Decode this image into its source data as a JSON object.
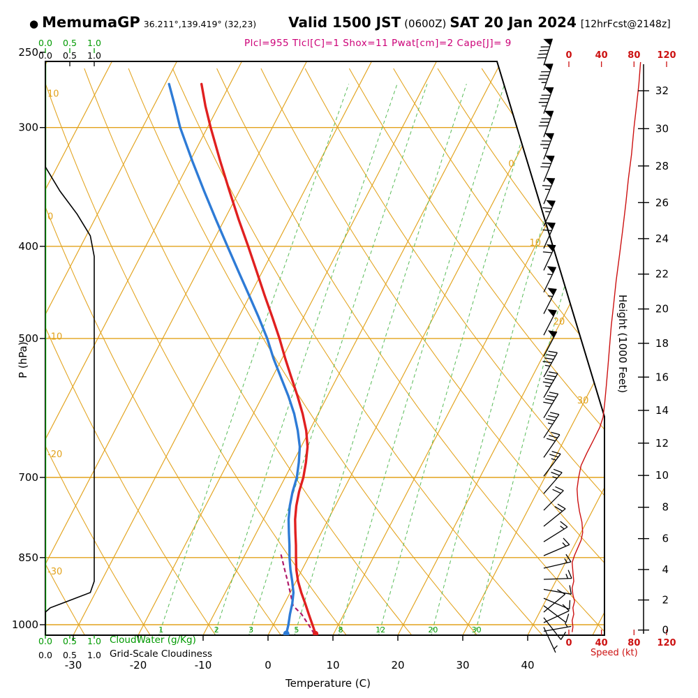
{
  "header": {
    "bullet": "●",
    "station": "MemumaGP",
    "coords": "36.211°,139.419° (32,23)",
    "valid": "Valid 1500 JST",
    "valid_z": "(0600Z)",
    "date": "SAT 20 Jan 2024",
    "fcst_tag": "[12hrFcst@2148z]",
    "params_line": "Plcl=955 Tlcl[C]=1 Shox=11 Pwat[cm]=2 Cape[J]= 9"
  },
  "axes": {
    "pressure": {
      "label": "P (hPa)",
      "ticks": [
        250,
        300,
        400,
        500,
        700,
        850,
        1000
      ]
    },
    "temperature": {
      "label": "Temperature (C)",
      "ticks": [
        -30,
        -20,
        -10,
        0,
        10,
        20,
        30,
        40
      ]
    },
    "height": {
      "label": "Height (1000 Feet)",
      "ticks": [
        0,
        2,
        4,
        6,
        8,
        10,
        12,
        14,
        16,
        18,
        20,
        22,
        24,
        26,
        28,
        30,
        32
      ]
    },
    "speed": {
      "label": "Speed (kt)",
      "ticks": [
        0,
        40,
        80,
        120
      ]
    },
    "cloudwater": {
      "label": "CloudWater (g/Kg)",
      "ticks": [
        "0.0",
        "0.5",
        "1.0"
      ]
    },
    "cloudiness": {
      "label": "Grid-Scale Cloudiness",
      "ticks": [
        "0.0",
        "0.5",
        "1.0"
      ]
    },
    "dry_adiabat_labels": [
      10,
      0,
      -10,
      -20,
      -30
    ],
    "isotherm_labels": [
      0,
      10,
      20,
      30
    ],
    "mixing_ratio_labels": [
      1,
      2,
      3,
      5,
      8,
      12,
      20,
      30
    ]
  },
  "chart_data": {
    "type": "skewt-logp sounding",
    "pressure_range_hPa": [
      256,
      1030
    ],
    "temperature_profile": [
      [
        1022,
        7.2
      ],
      [
        1000,
        6.0
      ],
      [
        975,
        4.6
      ],
      [
        950,
        3.2
      ],
      [
        925,
        1.7
      ],
      [
        900,
        0.3
      ],
      [
        875,
        -0.9
      ],
      [
        850,
        -1.9
      ],
      [
        825,
        -2.9
      ],
      [
        800,
        -4.0
      ],
      [
        775,
        -5.1
      ],
      [
        750,
        -6.0
      ],
      [
        725,
        -6.7
      ],
      [
        700,
        -7.2
      ],
      [
        675,
        -8.0
      ],
      [
        650,
        -9.0
      ],
      [
        625,
        -10.5
      ],
      [
        600,
        -12.4
      ],
      [
        575,
        -14.6
      ],
      [
        550,
        -17.0
      ],
      [
        525,
        -19.5
      ],
      [
        500,
        -22.0
      ],
      [
        475,
        -24.8
      ],
      [
        450,
        -27.8
      ],
      [
        425,
        -30.9
      ],
      [
        400,
        -34.2
      ],
      [
        375,
        -37.8
      ],
      [
        350,
        -41.5
      ],
      [
        325,
        -45.4
      ],
      [
        300,
        -49.5
      ],
      [
        285,
        -52.0
      ],
      [
        270,
        -54.4
      ]
    ],
    "dewpoint_profile": [
      [
        1022,
        2.7
      ],
      [
        1000,
        2.3
      ],
      [
        975,
        1.7
      ],
      [
        950,
        1.2
      ],
      [
        925,
        0.5
      ],
      [
        900,
        -0.6
      ],
      [
        875,
        -1.8
      ],
      [
        850,
        -2.9
      ],
      [
        825,
        -3.9
      ],
      [
        800,
        -5.0
      ],
      [
        775,
        -6.1
      ],
      [
        750,
        -7.0
      ],
      [
        725,
        -7.7
      ],
      [
        700,
        -8.2
      ],
      [
        675,
        -9.1
      ],
      [
        650,
        -10.2
      ],
      [
        625,
        -11.8
      ],
      [
        600,
        -13.7
      ],
      [
        575,
        -16.0
      ],
      [
        550,
        -18.6
      ],
      [
        525,
        -21.3
      ],
      [
        500,
        -23.9
      ],
      [
        475,
        -26.9
      ],
      [
        450,
        -30.2
      ],
      [
        425,
        -33.7
      ],
      [
        400,
        -37.4
      ],
      [
        375,
        -41.3
      ],
      [
        350,
        -45.4
      ],
      [
        325,
        -49.7
      ],
      [
        300,
        -54.2
      ],
      [
        285,
        -56.7
      ],
      [
        270,
        -59.4
      ]
    ],
    "parcel_path": [
      [
        1022,
        7.0
      ],
      [
        1000,
        5.4
      ],
      [
        975,
        3.5
      ],
      [
        955,
        1.5
      ],
      [
        925,
        0.0
      ],
      [
        900,
        -1.3
      ],
      [
        875,
        -2.7
      ],
      [
        850,
        -4.1
      ],
      [
        838,
        -4.8
      ]
    ],
    "cloudiness_profile": [
      [
        256,
        0
      ],
      [
        330,
        0
      ],
      [
        350,
        0.3
      ],
      [
        370,
        0.65
      ],
      [
        390,
        0.92
      ],
      [
        410,
        1.0
      ],
      [
        900,
        1.0
      ],
      [
        925,
        0.92
      ],
      [
        945,
        0.45
      ],
      [
        960,
        0.1
      ],
      [
        970,
        0
      ],
      [
        1025,
        0
      ]
    ],
    "cloudwater_profile": [
      [
        256,
        0
      ],
      [
        500,
        0
      ],
      [
        750,
        0
      ],
      [
        1025,
        0
      ]
    ],
    "wind_speed_profile_kt": [
      [
        256,
        88
      ],
      [
        270,
        86
      ],
      [
        285,
        83
      ],
      [
        300,
        80
      ],
      [
        320,
        77
      ],
      [
        340,
        73
      ],
      [
        360,
        70
      ],
      [
        385,
        66
      ],
      [
        410,
        62
      ],
      [
        435,
        58
      ],
      [
        460,
        55
      ],
      [
        485,
        52
      ],
      [
        510,
        50
      ],
      [
        535,
        48
      ],
      [
        560,
        46
      ],
      [
        585,
        44
      ],
      [
        605,
        42
      ],
      [
        620,
        38
      ],
      [
        640,
        30
      ],
      [
        660,
        22
      ],
      [
        680,
        15
      ],
      [
        700,
        12
      ],
      [
        720,
        10
      ],
      [
        740,
        11
      ],
      [
        760,
        13
      ],
      [
        780,
        16
      ],
      [
        800,
        17
      ],
      [
        815,
        15
      ],
      [
        830,
        11
      ],
      [
        845,
        7
      ],
      [
        860,
        4
      ],
      [
        880,
        5
      ],
      [
        900,
        6
      ],
      [
        915,
        4
      ],
      [
        930,
        5
      ],
      [
        945,
        7
      ],
      [
        960,
        5
      ],
      [
        975,
        6
      ],
      [
        990,
        4
      ],
      [
        1005,
        5
      ],
      [
        1018,
        4
      ]
    ],
    "wind_barbs": [
      {
        "p": 258,
        "kt": 90,
        "angle": 18
      },
      {
        "p": 274,
        "kt": 85,
        "angle": 19
      },
      {
        "p": 290,
        "kt": 85,
        "angle": 20
      },
      {
        "p": 307,
        "kt": 80,
        "angle": 20
      },
      {
        "p": 324,
        "kt": 75,
        "angle": 21
      },
      {
        "p": 342,
        "kt": 70,
        "angle": 22
      },
      {
        "p": 361,
        "kt": 65,
        "angle": 23
      },
      {
        "p": 381,
        "kt": 65,
        "angle": 24
      },
      {
        "p": 402,
        "kt": 60,
        "angle": 24
      },
      {
        "p": 424,
        "kt": 60,
        "angle": 25
      },
      {
        "p": 447,
        "kt": 55,
        "angle": 26
      },
      {
        "p": 471,
        "kt": 55,
        "angle": 27
      },
      {
        "p": 496,
        "kt": 50,
        "angle": 27
      },
      {
        "p": 522,
        "kt": 50,
        "angle": 28
      },
      {
        "p": 549,
        "kt": 45,
        "angle": 29
      },
      {
        "p": 577,
        "kt": 45,
        "angle": 30
      },
      {
        "p": 606,
        "kt": 40,
        "angle": 31
      },
      {
        "p": 636,
        "kt": 35,
        "angle": 33
      },
      {
        "p": 667,
        "kt": 30,
        "angle": 35
      },
      {
        "p": 698,
        "kt": 25,
        "angle": 37
      },
      {
        "p": 728,
        "kt": 25,
        "angle": 41
      },
      {
        "p": 758,
        "kt": 20,
        "angle": 45
      },
      {
        "p": 788,
        "kt": 20,
        "angle": 51
      },
      {
        "p": 818,
        "kt": 15,
        "angle": 58
      },
      {
        "p": 846,
        "kt": 15,
        "angle": 67
      },
      {
        "p": 872,
        "kt": 15,
        "angle": 77
      },
      {
        "p": 896,
        "kt": 15,
        "angle": 88
      },
      {
        "p": 918,
        "kt": 12,
        "angle": 100
      },
      {
        "p": 938,
        "kt": 10,
        "angle": 113
      },
      {
        "p": 955,
        "kt": 10,
        "angle": 127
      },
      {
        "p": 970,
        "kt": 10,
        "angle": 50
      },
      {
        "p": 983,
        "kt": 8,
        "angle": 142
      },
      {
        "p": 995,
        "kt": 8,
        "angle": 65
      },
      {
        "p": 1006,
        "kt": 5,
        "angle": 155
      },
      {
        "p": 1016,
        "kt": 5,
        "angle": 80
      }
    ],
    "colors": {
      "grid_orange": "#E2A21B",
      "grid_green": "#58BB58",
      "label_green": "#009A00",
      "temperature": "#E02020",
      "dewpoint": "#2E7BD6",
      "parcel": "#B01A6A",
      "speed_curve": "#CC1111",
      "cloudiness": "#000000",
      "cloudwater": "#00A800",
      "axis_red": "#CC1111",
      "frame": "#000000",
      "params_text": "#CC0077"
    }
  }
}
